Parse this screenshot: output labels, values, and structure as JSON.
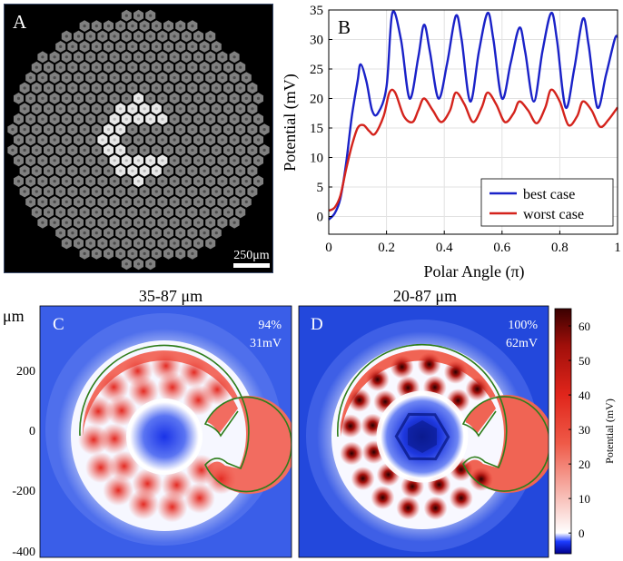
{
  "panel_a": {
    "letter": "A",
    "scalebar_label": "250μm"
  },
  "chart_data": {
    "type": "line",
    "panel_letter": "B",
    "xlabel": "Polar Angle (π)",
    "ylabel": "Potential (mV)",
    "xlim": [
      0,
      1
    ],
    "ylim": [
      -3,
      35
    ],
    "xticks": [
      "0",
      "0.2",
      "0.4",
      "0.6",
      "0.8",
      "1"
    ],
    "yticks": [
      "0",
      "5",
      "10",
      "15",
      "20",
      "25",
      "30",
      "35"
    ],
    "grid": true,
    "legend_position": "bottom-right",
    "series": [
      {
        "name": "best case",
        "color": "#1a22c8",
        "x": [
          0,
          0.02,
          0.04,
          0.06,
          0.08,
          0.1,
          0.11,
          0.13,
          0.15,
          0.17,
          0.2,
          0.22,
          0.25,
          0.28,
          0.31,
          0.33,
          0.35,
          0.38,
          0.41,
          0.44,
          0.46,
          0.49,
          0.52,
          0.55,
          0.57,
          0.6,
          0.63,
          0.66,
          0.68,
          0.71,
          0.74,
          0.77,
          0.79,
          0.82,
          0.85,
          0.88,
          0.9,
          0.93,
          0.96,
          0.99,
          1.0
        ],
        "y": [
          -0.5,
          0.5,
          3,
          9,
          17,
          23,
          25.8,
          23,
          18,
          17.5,
          22,
          34.5,
          30,
          20,
          27,
          32.5,
          28,
          20,
          26,
          34,
          30,
          19.5,
          28,
          34.5,
          30,
          20,
          26,
          32,
          28,
          19.5,
          28,
          34.5,
          30,
          18.5,
          25,
          33.5,
          29,
          18.5,
          24,
          30,
          30.5
        ]
      },
      {
        "name": "worst case",
        "color": "#d4231c",
        "x": [
          0,
          0.02,
          0.04,
          0.06,
          0.08,
          0.1,
          0.12,
          0.14,
          0.16,
          0.19,
          0.21,
          0.23,
          0.26,
          0.29,
          0.31,
          0.33,
          0.36,
          0.39,
          0.42,
          0.44,
          0.47,
          0.5,
          0.53,
          0.55,
          0.58,
          0.61,
          0.64,
          0.66,
          0.69,
          0.72,
          0.75,
          0.77,
          0.8,
          0.83,
          0.86,
          0.88,
          0.91,
          0.94,
          0.97,
          1.0
        ],
        "y": [
          1,
          1.5,
          3.5,
          8,
          12,
          15,
          15.5,
          14.5,
          14,
          17,
          21,
          21,
          17,
          16,
          18,
          20,
          18,
          16,
          18,
          21,
          19,
          16,
          18.5,
          21,
          19,
          16,
          17.5,
          19.5,
          18,
          15.8,
          18.5,
          21.5,
          19.5,
          15.5,
          17,
          19.5,
          18,
          15.2,
          16.5,
          18.5
        ]
      }
    ]
  },
  "panel_c": {
    "letter": "C",
    "title": "35-87 μm",
    "percent": "94%",
    "voltage": "31mV",
    "axis_unit": "μm",
    "yticks": [
      "200",
      "0",
      "-200",
      "-400"
    ]
  },
  "panel_d": {
    "letter": "D",
    "title": "20-87 μm",
    "percent": "100%",
    "voltage": "62mV"
  },
  "colorbar": {
    "label": "Potential (mV)",
    "ticks": [
      "60",
      "50",
      "40",
      "30",
      "20",
      "10",
      "0"
    ],
    "range": [
      -6,
      65
    ]
  },
  "colors": {
    "hex_fill": "#808080",
    "hex_bg": "#000000",
    "c_shape": "#e8e8e8",
    "contour": "#2e7d1b"
  }
}
